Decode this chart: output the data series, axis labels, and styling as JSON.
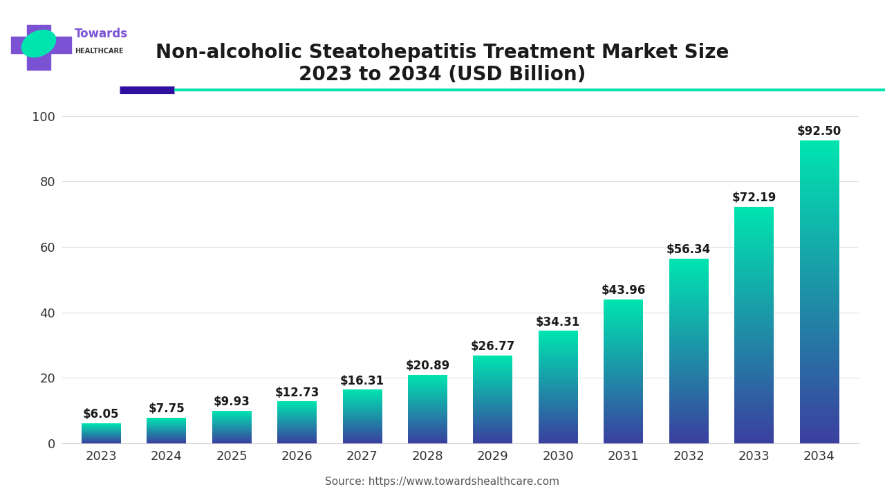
{
  "years": [
    "2023",
    "2024",
    "2025",
    "2026",
    "2027",
    "2028",
    "2029",
    "2030",
    "2031",
    "2032",
    "2033",
    "2034"
  ],
  "values": [
    6.05,
    7.75,
    9.93,
    12.73,
    16.31,
    20.89,
    26.77,
    34.31,
    43.96,
    56.34,
    72.19,
    92.5
  ],
  "labels": [
    "$6.05",
    "$7.75",
    "$9.93",
    "$12.73",
    "$16.31",
    "$20.89",
    "$26.77",
    "$34.31",
    "$43.96",
    "$56.34",
    "$72.19",
    "$92.50"
  ],
  "title_line1": "Non-alcoholic Steatohepatitis Treatment Market Size",
  "title_line2": "2023 to 2034 (USD Billion)",
  "source_text": "Source: https://www.towardshealthcare.com",
  "bar_color_bottom": "#3b3fa0",
  "bar_color_top": "#00e5b0",
  "bg_color": "#ffffff",
  "chart_bg": "#ffffff",
  "grid_color": "#e0e0e0",
  "title_color": "#1a1a1a",
  "label_color": "#1a1a1a",
  "source_color": "#555555",
  "tick_color": "#333333",
  "separator_purple": "#2e0fa0",
  "separator_teal": "#00e5b0",
  "cross_color": "#7b52d4",
  "leaf_color": "#00e5b0",
  "towards_color": "#7b52d4",
  "healthcare_color": "#333333",
  "ylim": [
    0,
    105
  ],
  "yticks": [
    0,
    20,
    40,
    60,
    80,
    100
  ],
  "title_fontsize": 20,
  "label_fontsize": 12,
  "tick_fontsize": 13,
  "source_fontsize": 11
}
